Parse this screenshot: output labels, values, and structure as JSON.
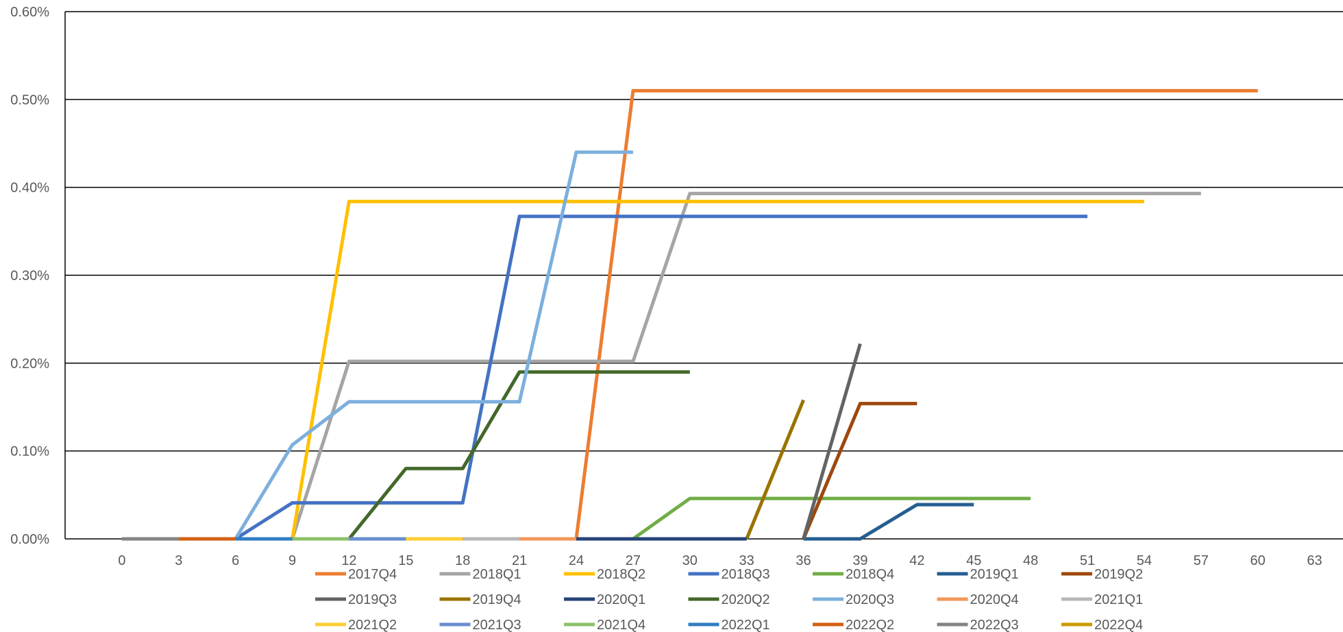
{
  "chart_data": {
    "type": "line",
    "title": "",
    "xlabel": "",
    "ylabel": "",
    "xlim": [
      -3,
      64.5
    ],
    "ylim": [
      0,
      0.006
    ],
    "grid": true,
    "legend_position": "bottom",
    "x_ticks": [
      0,
      3,
      6,
      9,
      12,
      15,
      18,
      21,
      24,
      27,
      30,
      33,
      36,
      39,
      42,
      45,
      48,
      51,
      54,
      57,
      60,
      63
    ],
    "x_tick_labels": [
      "0",
      "3",
      "6",
      "9",
      "12",
      "15",
      "18",
      "21",
      "24",
      "27",
      "30",
      "33",
      "36",
      "39",
      "42",
      "45",
      "48",
      "51",
      "54",
      "57",
      "60",
      "63"
    ],
    "y_ticks": [
      0,
      0.001,
      0.002,
      0.003,
      0.004,
      0.005,
      0.006
    ],
    "y_tick_labels": [
      "0.00%",
      "0.10%",
      "0.20%",
      "0.30%",
      "0.40%",
      "0.50%",
      "0.60%"
    ],
    "series": [
      {
        "name": "2017Q4",
        "color": "#ED7D31",
        "x": [
          0,
          24,
          27,
          60
        ],
        "y": [
          0,
          0,
          0.0051,
          0.0051
        ]
      },
      {
        "name": "2018Q1",
        "color": "#A5A5A5",
        "x": [
          0,
          9,
          12,
          27,
          30,
          57
        ],
        "y": [
          0,
          0,
          0.00202,
          0.00202,
          0.00393,
          0.00393
        ]
      },
      {
        "name": "2018Q2",
        "color": "#FFC000",
        "x": [
          0,
          9,
          12,
          54
        ],
        "y": [
          0,
          0,
          0.00384,
          0.00384
        ]
      },
      {
        "name": "2018Q3",
        "color": "#4472C4",
        "x": [
          6,
          9,
          18,
          21,
          51
        ],
        "y": [
          0,
          0.00041,
          0.00041,
          0.00367,
          0.00367
        ]
      },
      {
        "name": "2018Q4",
        "color": "#70AD47",
        "x": [
          27,
          30,
          48
        ],
        "y": [
          0,
          0.00046,
          0.00046
        ]
      },
      {
        "name": "2019Q1",
        "color": "#255E91",
        "x": [
          36,
          39,
          42,
          45
        ],
        "y": [
          0,
          0,
          0.00039,
          0.00039
        ]
      },
      {
        "name": "2019Q2",
        "color": "#9E480E",
        "x": [
          36,
          39,
          42
        ],
        "y": [
          0,
          0.00154,
          0.00154
        ]
      },
      {
        "name": "2019Q3",
        "color": "#636363",
        "x": [
          36,
          39
        ],
        "y": [
          0,
          0.00222
        ]
      },
      {
        "name": "2019Q4",
        "color": "#997300",
        "x": [
          33,
          36
        ],
        "y": [
          0,
          0.00158
        ]
      },
      {
        "name": "2020Q1",
        "color": "#264478",
        "x": [
          24,
          33
        ],
        "y": [
          0,
          0
        ]
      },
      {
        "name": "2020Q2",
        "color": "#43682B",
        "x": [
          12,
          15,
          18,
          21,
          30
        ],
        "y": [
          0,
          0.0008,
          0.0008,
          0.0019,
          0.0019
        ]
      },
      {
        "name": "2020Q3",
        "color": "#7CAFDD",
        "x": [
          6,
          9,
          12,
          21,
          24,
          27
        ],
        "y": [
          0,
          0.00107,
          0.00156,
          0.00156,
          0.0044,
          0.0044
        ]
      },
      {
        "name": "2020Q4",
        "color": "#F1975A",
        "x": [
          21,
          24
        ],
        "y": [
          0,
          0
        ]
      },
      {
        "name": "2021Q1",
        "color": "#B7B7B7",
        "x": [
          18,
          21
        ],
        "y": [
          0,
          0
        ]
      },
      {
        "name": "2021Q2",
        "color": "#FFCD33",
        "x": [
          15,
          18
        ],
        "y": [
          0,
          0
        ]
      },
      {
        "name": "2021Q3",
        "color": "#698ED0",
        "x": [
          12,
          15
        ],
        "y": [
          0,
          0
        ]
      },
      {
        "name": "2021Q4",
        "color": "#8CC168",
        "x": [
          9,
          12
        ],
        "y": [
          0,
          0
        ]
      },
      {
        "name": "2022Q1",
        "color": "#327DC2",
        "x": [
          6,
          9
        ],
        "y": [
          0,
          0
        ]
      },
      {
        "name": "2022Q2",
        "color": "#D26012",
        "x": [
          3,
          6
        ],
        "y": [
          0,
          0
        ]
      },
      {
        "name": "2022Q3",
        "color": "#848484",
        "x": [
          0,
          3
        ],
        "y": [
          0,
          0
        ]
      },
      {
        "name": "2022Q4",
        "color": "#CC9A00",
        "x": [],
        "y": []
      }
    ]
  }
}
